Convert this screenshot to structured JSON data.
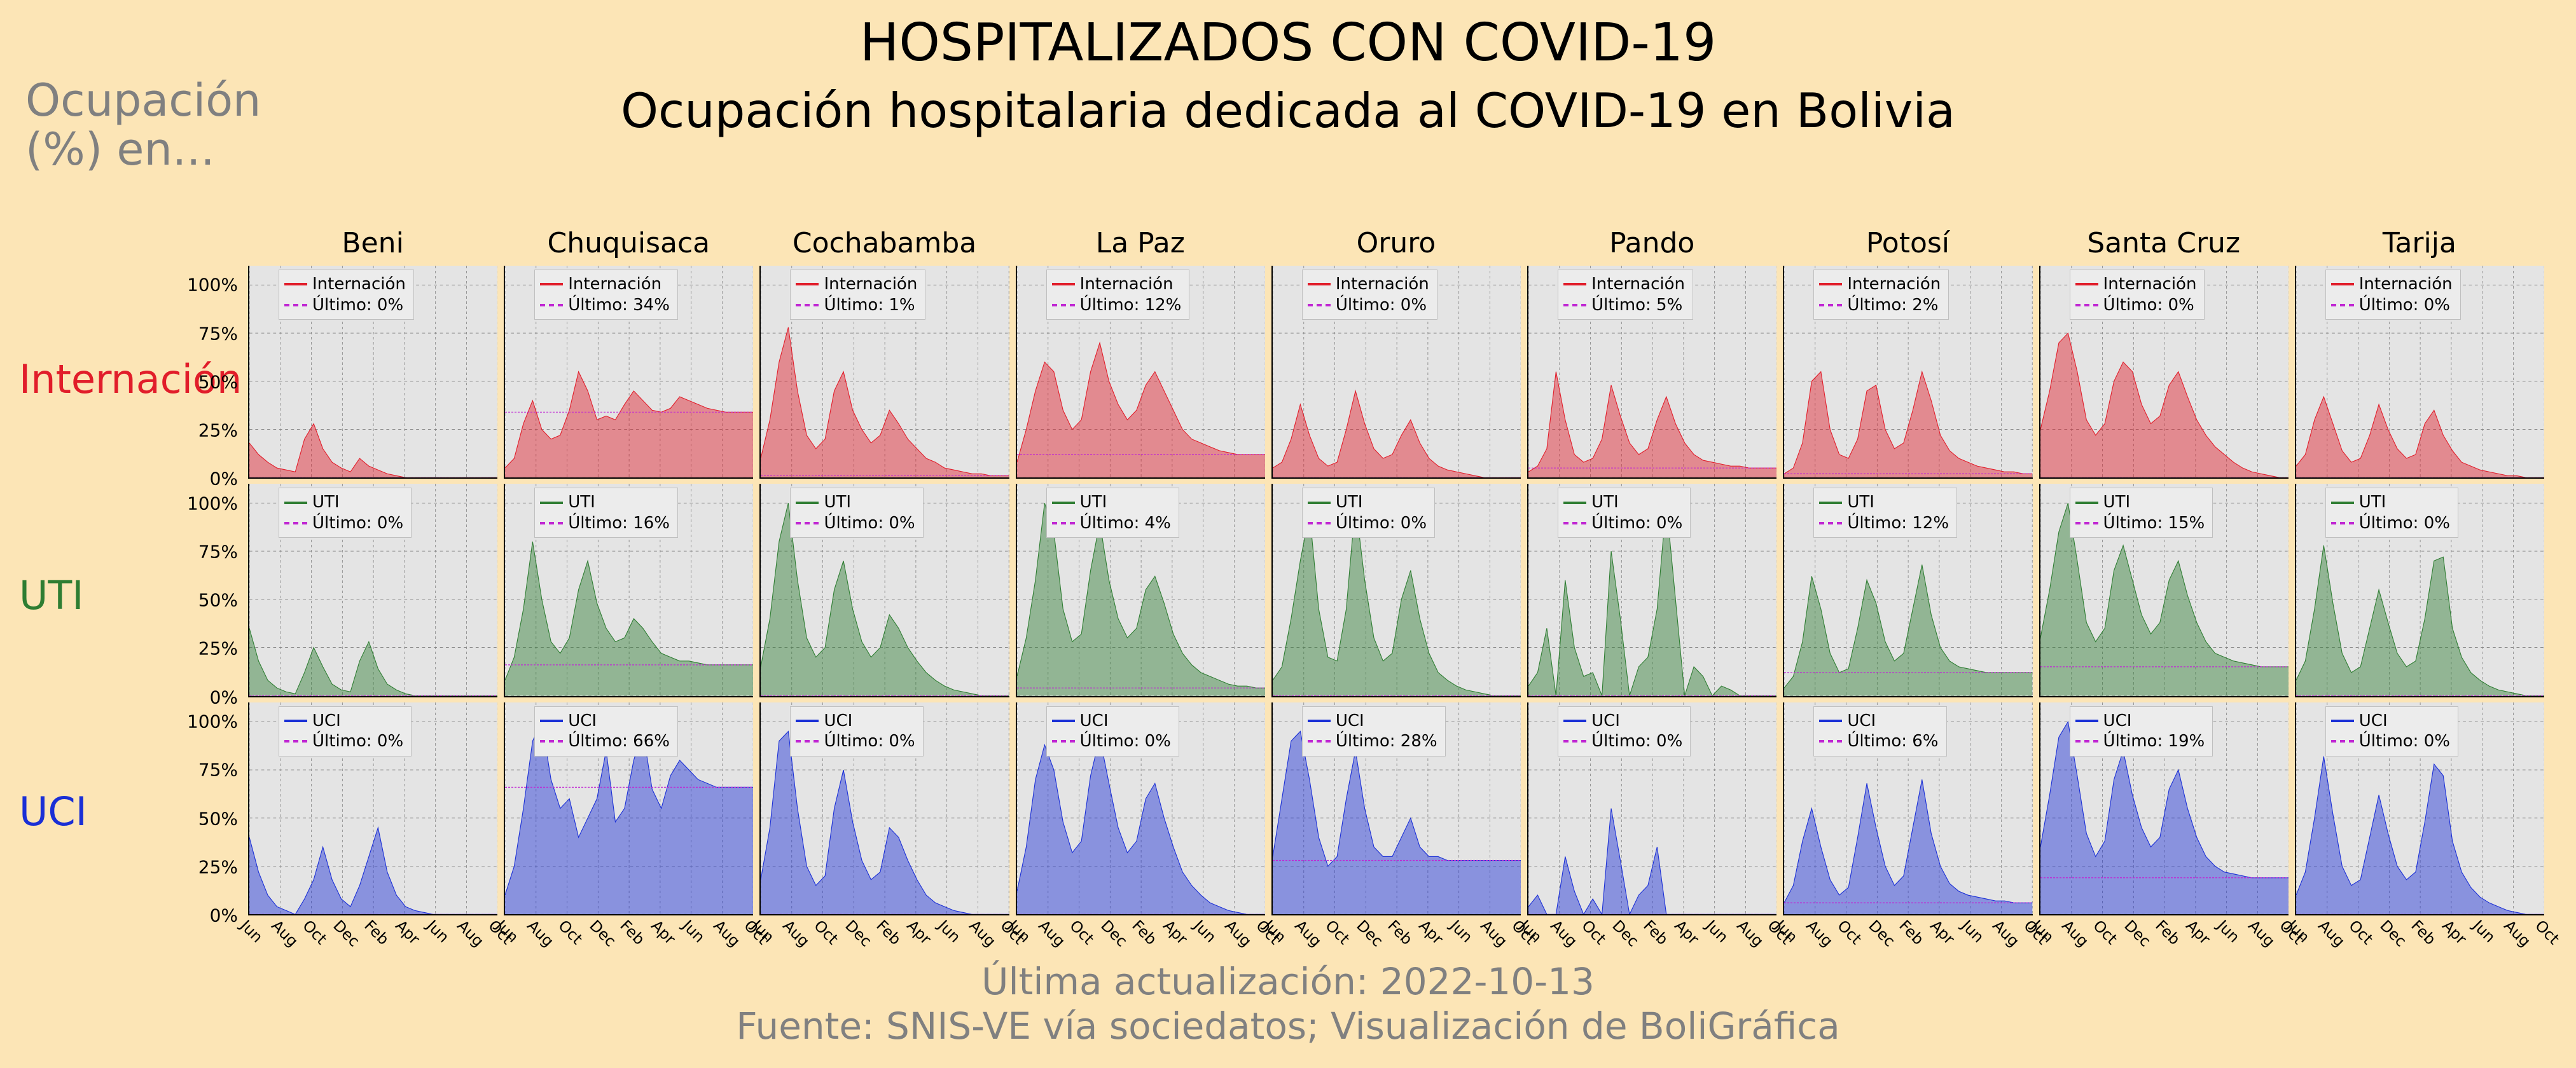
{
  "title_main": "HOSPITALIZADOS CON COVID-19",
  "title_sub": "Ocupación hospitalaria dedicada al COVID-19 en Bolivia",
  "super_label_line1": "Ocupación",
  "super_label_line2": "(%) en...",
  "footer_update": "Última actualización: 2022-10-13",
  "footer_source": "Fuente: SNIS-VE vía sociedatos; Visualización de BoliGráfica",
  "background_color": "#fce5b6",
  "panel_bg": "#e4e4e4",
  "grid_color": "#808080",
  "label_font_color": "#808080",
  "x_months": [
    "Jun",
    "Aug",
    "Oct",
    "Dec",
    "Feb",
    "Apr",
    "Jun",
    "Aug",
    "Oct"
  ],
  "y_ticks": [
    0,
    25,
    50,
    75,
    100
  ],
  "y_tick_labels": [
    "0%",
    "25%",
    "50%",
    "75%",
    "100%"
  ],
  "ylim": [
    0,
    110
  ],
  "dash_color": "#c026d3",
  "regions": [
    "Beni",
    "Chuquisaca",
    "Cochabamba",
    "La Paz",
    "Oruro",
    "Pando",
    "Potosí",
    "Santa Cruz",
    "Tarija"
  ],
  "rows": [
    {
      "key": "internacion",
      "label": "Internación",
      "color": "#e11d2a",
      "legend_series": "Internación"
    },
    {
      "key": "uti",
      "label": "UTI",
      "color": "#2e7d32",
      "legend_series": "UTI"
    },
    {
      "key": "uci",
      "label": "UCI",
      "color": "#1a2fd6",
      "legend_series": "UCI"
    }
  ],
  "last_values": {
    "internacion": {
      "Beni": "0%",
      "Chuquisaca": "34%",
      "Cochabamba": "1%",
      "La Paz": "12%",
      "Oruro": "0%",
      "Pando": "5%",
      "Potosí": "2%",
      "Santa Cruz": "0%",
      "Tarija": "0%"
    },
    "uti": {
      "Beni": "0%",
      "Chuquisaca": "16%",
      "Cochabamba": "0%",
      "La Paz": "4%",
      "Oruro": "0%",
      "Pando": "0%",
      "Potosí": "12%",
      "Santa Cruz": "15%",
      "Tarija": "0%"
    },
    "uci": {
      "Beni": "0%",
      "Chuquisaca": "66%",
      "Cochabamba": "0%",
      "La Paz": "0%",
      "Oruro": "28%",
      "Pando": "0%",
      "Potosí": "6%",
      "Santa Cruz": "19%",
      "Tarija": "0%"
    }
  },
  "series": {
    "internacion": {
      "Beni": [
        18,
        12,
        8,
        5,
        4,
        3,
        20,
        28,
        15,
        8,
        5,
        3,
        10,
        6,
        4,
        2,
        1,
        0,
        0,
        0,
        0,
        0,
        0,
        0,
        0,
        0,
        0,
        0
      ],
      "Chuquisaca": [
        5,
        10,
        28,
        40,
        25,
        20,
        22,
        35,
        55,
        45,
        30,
        32,
        30,
        38,
        45,
        40,
        35,
        34,
        36,
        42,
        40,
        38,
        36,
        35,
        34,
        34,
        34,
        34
      ],
      "Cochabamba": [
        10,
        30,
        60,
        78,
        45,
        22,
        15,
        20,
        45,
        55,
        35,
        25,
        18,
        22,
        35,
        28,
        20,
        15,
        10,
        8,
        5,
        4,
        3,
        2,
        2,
        1,
        1,
        1
      ],
      "La Paz": [
        8,
        25,
        45,
        60,
        55,
        35,
        25,
        30,
        55,
        70,
        50,
        38,
        30,
        35,
        48,
        55,
        45,
        35,
        25,
        20,
        18,
        16,
        14,
        13,
        12,
        12,
        12,
        12
      ],
      "Oruro": [
        5,
        8,
        20,
        38,
        22,
        10,
        6,
        8,
        25,
        45,
        28,
        15,
        10,
        12,
        22,
        30,
        18,
        10,
        6,
        4,
        3,
        2,
        1,
        0,
        0,
        0,
        0,
        0
      ],
      "Pando": [
        3,
        6,
        15,
        55,
        30,
        12,
        8,
        10,
        20,
        48,
        32,
        18,
        12,
        15,
        30,
        42,
        28,
        18,
        12,
        9,
        8,
        7,
        6,
        6,
        5,
        5,
        5,
        5
      ],
      "Potosí": [
        2,
        5,
        18,
        50,
        55,
        25,
        12,
        10,
        20,
        45,
        48,
        25,
        15,
        18,
        35,
        55,
        40,
        22,
        14,
        10,
        8,
        6,
        5,
        4,
        3,
        3,
        2,
        2
      ],
      "Santa Cruz": [
        25,
        45,
        70,
        75,
        55,
        30,
        22,
        28,
        50,
        60,
        55,
        38,
        28,
        32,
        48,
        55,
        42,
        30,
        22,
        16,
        12,
        8,
        5,
        3,
        2,
        1,
        0,
        0
      ],
      "Tarija": [
        6,
        12,
        30,
        42,
        28,
        14,
        8,
        10,
        22,
        38,
        25,
        15,
        10,
        12,
        28,
        35,
        22,
        14,
        8,
        6,
        4,
        3,
        2,
        1,
        1,
        0,
        0,
        0
      ]
    },
    "uti": {
      "Beni": [
        35,
        18,
        8,
        4,
        2,
        1,
        12,
        25,
        15,
        6,
        3,
        2,
        18,
        28,
        14,
        6,
        3,
        1,
        0,
        0,
        0,
        0,
        0,
        0,
        0,
        0,
        0,
        0
      ],
      "Chuquisaca": [
        8,
        20,
        45,
        80,
        50,
        28,
        22,
        30,
        55,
        70,
        48,
        35,
        28,
        30,
        40,
        35,
        28,
        22,
        20,
        18,
        18,
        17,
        16,
        16,
        16,
        16,
        16,
        16
      ],
      "Cochabamba": [
        15,
        40,
        80,
        100,
        60,
        30,
        20,
        25,
        55,
        70,
        45,
        28,
        20,
        25,
        42,
        35,
        25,
        18,
        12,
        8,
        5,
        3,
        2,
        1,
        0,
        0,
        0,
        0
      ],
      "La Paz": [
        10,
        30,
        60,
        100,
        85,
        45,
        28,
        32,
        65,
        90,
        60,
        40,
        30,
        35,
        55,
        62,
        48,
        32,
        22,
        16,
        12,
        10,
        8,
        6,
        5,
        5,
        4,
        4
      ],
      "Oruro": [
        8,
        15,
        40,
        70,
        95,
        45,
        20,
        18,
        45,
        100,
        60,
        30,
        18,
        22,
        50,
        65,
        40,
        22,
        12,
        8,
        5,
        3,
        2,
        1,
        0,
        0,
        0,
        0
      ],
      "Pando": [
        5,
        12,
        35,
        0,
        60,
        25,
        10,
        12,
        0,
        75,
        40,
        0,
        15,
        20,
        45,
        100,
        50,
        0,
        15,
        10,
        0,
        5,
        3,
        0,
        0,
        0,
        0,
        0
      ],
      "Potosí": [
        4,
        10,
        28,
        62,
        45,
        22,
        12,
        14,
        35,
        60,
        48,
        28,
        18,
        22,
        45,
        68,
        42,
        25,
        18,
        15,
        14,
        13,
        12,
        12,
        12,
        12,
        12,
        12
      ],
      "Santa Cruz": [
        30,
        55,
        85,
        100,
        70,
        38,
        28,
        35,
        65,
        78,
        60,
        42,
        32,
        38,
        60,
        70,
        52,
        38,
        28,
        22,
        20,
        18,
        17,
        16,
        15,
        15,
        15,
        15
      ],
      "Tarija": [
        8,
        18,
        45,
        78,
        48,
        22,
        12,
        15,
        35,
        55,
        38,
        22,
        15,
        18,
        40,
        70,
        72,
        35,
        20,
        12,
        8,
        5,
        3,
        2,
        1,
        0,
        0,
        0
      ]
    },
    "uci": {
      "Beni": [
        40,
        22,
        10,
        4,
        2,
        0,
        8,
        18,
        35,
        18,
        8,
        4,
        15,
        30,
        45,
        22,
        10,
        4,
        2,
        1,
        0,
        0,
        0,
        0,
        0,
        0,
        0,
        0
      ],
      "Chuquisaca": [
        10,
        25,
        55,
        90,
        100,
        70,
        55,
        60,
        40,
        50,
        60,
        85,
        48,
        55,
        80,
        95,
        65,
        55,
        72,
        80,
        75,
        70,
        68,
        66,
        66,
        66,
        66,
        66
      ],
      "Cochabamba": [
        18,
        45,
        90,
        95,
        55,
        25,
        15,
        20,
        55,
        75,
        48,
        28,
        18,
        22,
        45,
        40,
        28,
        18,
        10,
        6,
        4,
        2,
        1,
        0,
        0,
        0,
        0,
        0
      ],
      "La Paz": [
        12,
        35,
        70,
        88,
        75,
        48,
        32,
        38,
        72,
        92,
        68,
        45,
        32,
        38,
        60,
        68,
        50,
        35,
        22,
        15,
        10,
        6,
        4,
        2,
        1,
        0,
        0,
        0
      ],
      "Oruro": [
        30,
        60,
        90,
        95,
        70,
        40,
        25,
        30,
        60,
        85,
        55,
        35,
        30,
        30,
        40,
        50,
        35,
        30,
        30,
        28,
        28,
        28,
        28,
        28,
        28,
        28,
        28,
        28
      ],
      "Pando": [
        4,
        10,
        0,
        0,
        30,
        12,
        0,
        8,
        0,
        55,
        28,
        0,
        10,
        15,
        35,
        0,
        0,
        0,
        0,
        0,
        0,
        0,
        0,
        0,
        0,
        0,
        0,
        0
      ],
      "Potosí": [
        6,
        15,
        38,
        55,
        35,
        18,
        10,
        14,
        40,
        68,
        45,
        25,
        15,
        20,
        45,
        70,
        42,
        25,
        16,
        12,
        10,
        9,
        8,
        7,
        7,
        6,
        6,
        6
      ],
      "Santa Cruz": [
        35,
        62,
        92,
        100,
        72,
        42,
        30,
        38,
        70,
        85,
        62,
        45,
        35,
        40,
        65,
        75,
        55,
        40,
        30,
        25,
        22,
        21,
        20,
        19,
        19,
        19,
        19,
        19
      ],
      "Tarija": [
        10,
        22,
        50,
        82,
        52,
        25,
        15,
        18,
        40,
        62,
        42,
        25,
        18,
        22,
        48,
        78,
        72,
        38,
        22,
        14,
        9,
        6,
        4,
        2,
        1,
        0,
        0,
        0
      ]
    }
  }
}
